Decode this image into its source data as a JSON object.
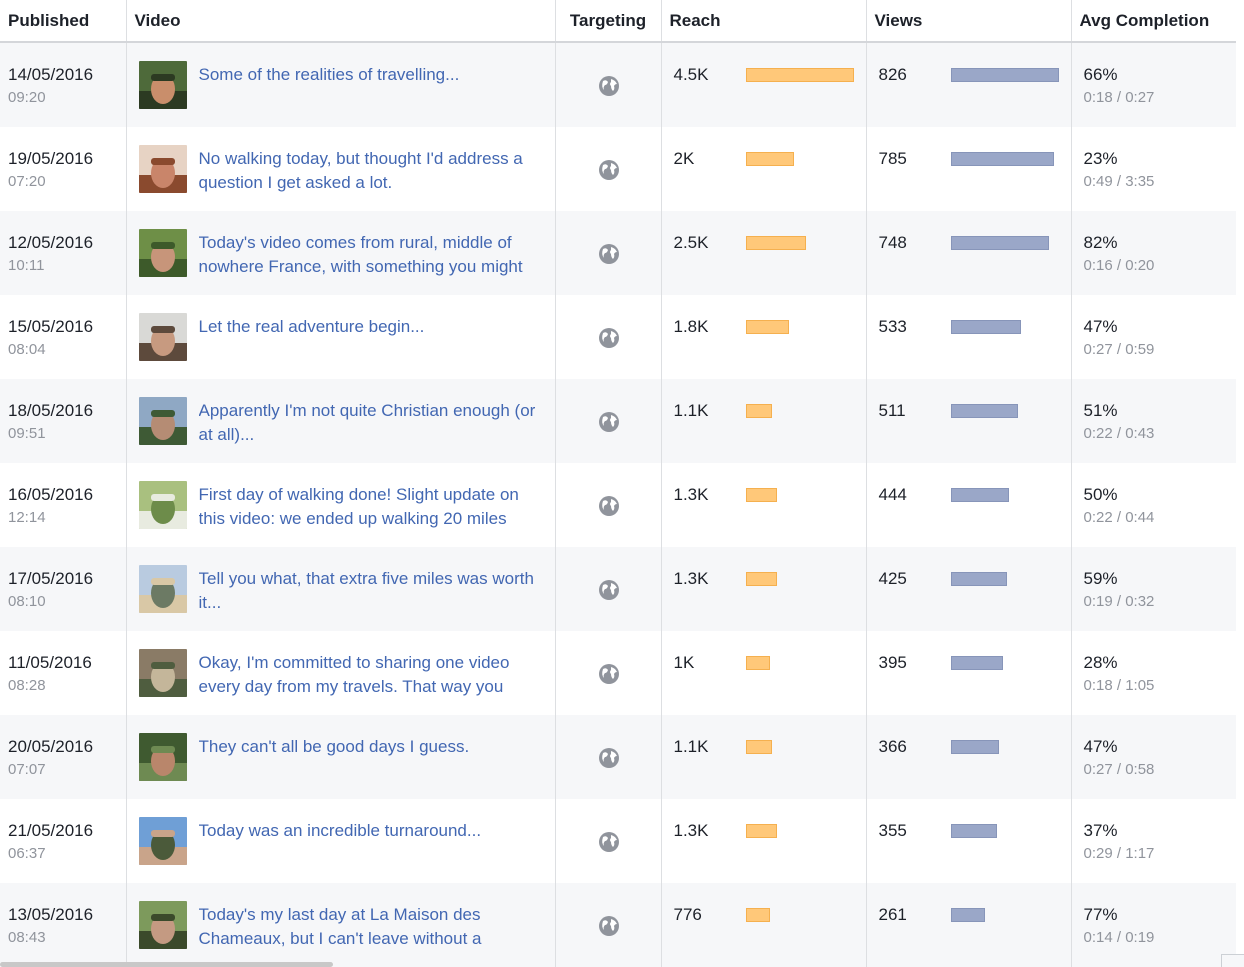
{
  "headers": {
    "published": "Published",
    "video": "Video",
    "targeting": "Targeting",
    "reach": "Reach",
    "views": "Views",
    "avg_completion": "Avg Completion"
  },
  "colors": {
    "reach_bar": "#ffc879",
    "views_bar": "#9aa7c8",
    "link": "#4267b2"
  },
  "targeting_icon": "globe-icon",
  "rows": [
    {
      "date": "14/05/2016",
      "time": "09:20",
      "title": "Some of the realities of travelling...",
      "reach": "4.5K",
      "reach_value": 4500,
      "views": "826",
      "views_value": 826,
      "pct": "66%",
      "dur": "0:18 / 0:27",
      "thumb": [
        "#4e6a3a",
        "#c98e6b",
        "#2c3a22"
      ]
    },
    {
      "date": "19/05/2016",
      "time": "07:20",
      "title": "No walking today, but thought I'd address a question I get asked a lot.",
      "reach": "2K",
      "reach_value": 2000,
      "views": "785",
      "views_value": 785,
      "pct": "23%",
      "dur": "0:49 / 3:35",
      "thumb": [
        "#e7d3c4",
        "#c9856a",
        "#8a4a2e"
      ]
    },
    {
      "date": "12/05/2016",
      "time": "10:11",
      "title": "Today's video comes from rural, middle of nowhere France, with something you might",
      "reach": "2.5K",
      "reach_value": 2500,
      "views": "748",
      "views_value": 748,
      "pct": "82%",
      "dur": "0:16 / 0:20",
      "thumb": [
        "#6e8f47",
        "#c7957a",
        "#3d5a2a"
      ]
    },
    {
      "date": "15/05/2016",
      "time": "08:04",
      "title": "Let the real adventure begin...",
      "reach": "1.8K",
      "reach_value": 1800,
      "views": "533",
      "views_value": 533,
      "pct": "47%",
      "dur": "0:27 / 0:59",
      "thumb": [
        "#d9d9d6",
        "#c79a80",
        "#5d4a3c"
      ]
    },
    {
      "date": "18/05/2016",
      "time": "09:51",
      "title": "Apparently I'm not quite Christian enough (or at all)...",
      "reach": "1.1K",
      "reach_value": 1100,
      "views": "511",
      "views_value": 511,
      "pct": "51%",
      "dur": "0:22 / 0:43",
      "thumb": [
        "#8fa8c4",
        "#b58c74",
        "#3e5a35"
      ]
    },
    {
      "date": "16/05/2016",
      "time": "12:14",
      "title": "First day of walking done! Slight update on this video: we ended up walking 20 miles",
      "reach": "1.3K",
      "reach_value": 1300,
      "views": "444",
      "views_value": 444,
      "pct": "50%",
      "dur": "0:22 / 0:44",
      "thumb": [
        "#a9c07f",
        "#6d8c4a",
        "#e8ebe0"
      ]
    },
    {
      "date": "17/05/2016",
      "time": "08:10",
      "title": "Tell you what, that extra five miles was worth it...",
      "reach": "1.3K",
      "reach_value": 1300,
      "views": "425",
      "views_value": 425,
      "pct": "59%",
      "dur": "0:19 / 0:32",
      "thumb": [
        "#b9cbe0",
        "#6c7a64",
        "#d9c8a6"
      ]
    },
    {
      "date": "11/05/2016",
      "time": "08:28",
      "title": "Okay, I'm committed to sharing one video every day from my travels. That way you",
      "reach": "1K",
      "reach_value": 1000,
      "views": "395",
      "views_value": 395,
      "pct": "28%",
      "dur": "0:18 / 1:05",
      "thumb": [
        "#8a7b66",
        "#c4b69a",
        "#4f5d3f"
      ]
    },
    {
      "date": "20/05/2016",
      "time": "07:07",
      "title": "They can't all be good days I guess.",
      "reach": "1.1K",
      "reach_value": 1100,
      "views": "366",
      "views_value": 366,
      "pct": "47%",
      "dur": "0:27 / 0:58",
      "thumb": [
        "#3f5a30",
        "#b9866b",
        "#6e8a52"
      ]
    },
    {
      "date": "21/05/2016",
      "time": "06:37",
      "title": "Today was an incredible turnaround...",
      "reach": "1.3K",
      "reach_value": 1300,
      "views": "355",
      "views_value": 355,
      "pct": "37%",
      "dur": "0:29 / 1:17",
      "thumb": [
        "#6f9fd6",
        "#4b5a3a",
        "#c9a48a"
      ]
    },
    {
      "date": "13/05/2016",
      "time": "08:43",
      "title": "Today's my last day at La Maison des Chameaux, but I can't leave without a",
      "reach": "776",
      "reach_value": 776,
      "views": "261",
      "views_value": 261,
      "pct": "77%",
      "dur": "0:14 / 0:19",
      "thumb": [
        "#7d9a5c",
        "#c49a82",
        "#3b4a2b"
      ]
    }
  ]
}
